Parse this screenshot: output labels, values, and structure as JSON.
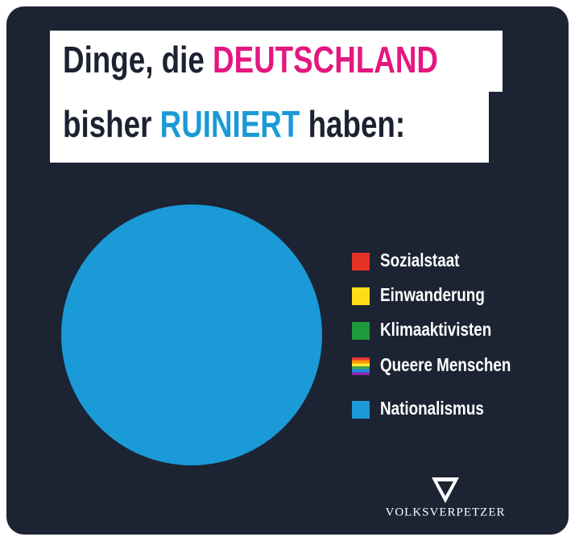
{
  "chart_data": {
    "type": "pie",
    "title_parts": [
      {
        "text": "Dinge, die ",
        "color": "#1c2231"
      },
      {
        "text": "DEUTSCHLAND",
        "color": "#e3177f"
      },
      {
        "text": "bisher ",
        "color": "#1c2231"
      },
      {
        "text": "RUINIERT",
        "color": "#1a9ad6"
      },
      {
        "text": " haben:",
        "color": "#1c2231"
      }
    ],
    "categories": [
      "Sozialstaat",
      "Einwanderung",
      "Klimaaktivisten",
      "Queere Menschen",
      "Nationalismus"
    ],
    "values": [
      0,
      0,
      0,
      0,
      100
    ],
    "colors": [
      "#e53226",
      "#ffde17",
      "#1f9a3a",
      [
        "#e53935",
        "#ff9800",
        "#ffeb3b",
        "#43a047",
        "#1e88e5",
        "#8e24aa"
      ],
      "#1a9ad6"
    ],
    "logo": "VOLKSVERPETZER"
  }
}
